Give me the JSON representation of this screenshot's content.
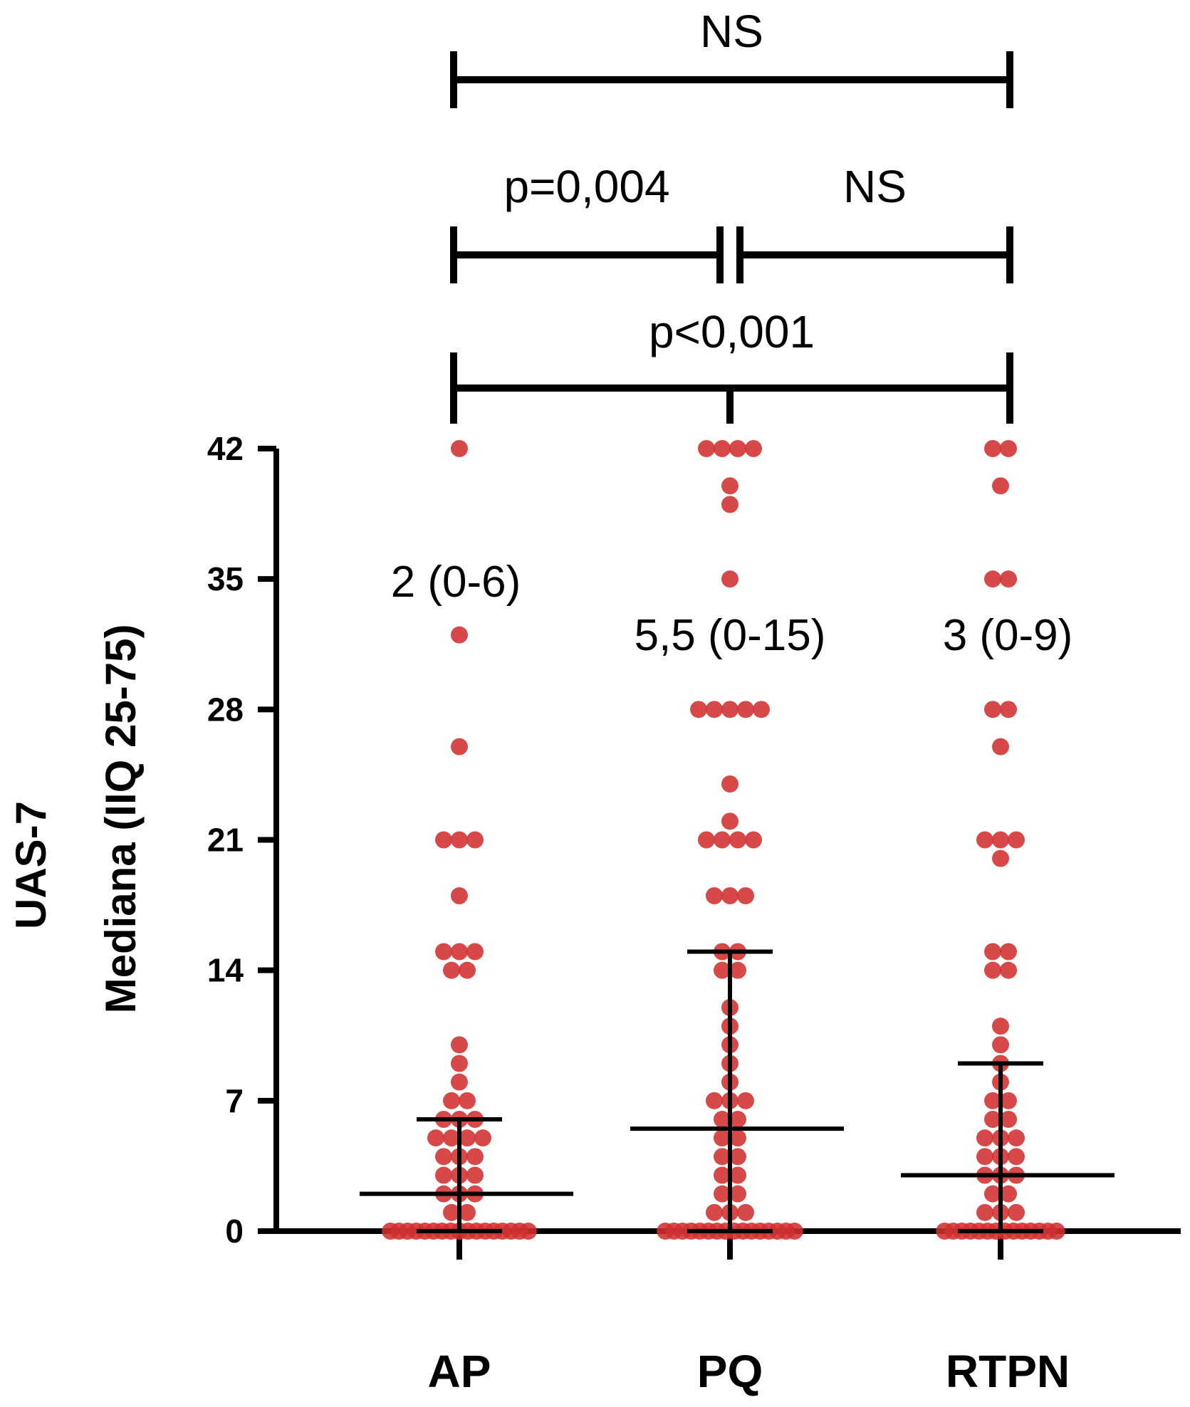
{
  "chart_data": {
    "type": "scatter",
    "ylabel": [
      "UAS-7",
      "Mediana (IIQ 25-75)"
    ],
    "yticks": [
      0,
      7,
      14,
      21,
      28,
      35,
      42
    ],
    "ylim": [
      0,
      42
    ],
    "categories": [
      "AP",
      "PQ",
      "RTPN"
    ],
    "groups": [
      {
        "name": "AP",
        "median": 2,
        "q1": 0,
        "q3": 6,
        "annotation": "2 (0-6)",
        "points": [
          42,
          32,
          26,
          21,
          21,
          21,
          18,
          15,
          15,
          15,
          14,
          14,
          10,
          9,
          8,
          7,
          7,
          6,
          6,
          6,
          5,
          5,
          5,
          5,
          4,
          4,
          4,
          3,
          3,
          3,
          2,
          2,
          2,
          1,
          1,
          0,
          0,
          0,
          0,
          0,
          0,
          0,
          0,
          0,
          0,
          0,
          0,
          0,
          0,
          0,
          0,
          0
        ]
      },
      {
        "name": "PQ",
        "median": 5.5,
        "q1": 0,
        "q3": 15,
        "annotation": "5,5 (0-15)",
        "points": [
          42,
          42,
          42,
          42,
          40,
          39,
          35,
          28,
          28,
          28,
          28,
          28,
          24,
          22,
          21,
          21,
          21,
          21,
          18,
          18,
          18,
          15,
          15,
          14,
          14,
          12,
          11,
          10,
          9,
          8,
          7,
          7,
          7,
          6,
          6,
          5,
          5,
          4,
          4,
          3,
          3,
          2,
          2,
          1,
          1,
          1,
          0,
          0,
          0,
          0,
          0,
          0,
          0,
          0,
          0,
          0,
          0,
          0,
          0,
          0,
          0,
          0
        ]
      },
      {
        "name": "RTPN",
        "median": 3,
        "q1": 0,
        "q3": 9,
        "annotation": "3 (0-9)",
        "points": [
          42,
          42,
          40,
          35,
          35,
          28,
          28,
          26,
          21,
          21,
          21,
          20,
          15,
          15,
          14,
          14,
          11,
          10,
          9,
          8,
          7,
          7,
          6,
          6,
          5,
          5,
          5,
          4,
          4,
          4,
          3,
          3,
          3,
          2,
          2,
          1,
          1,
          1,
          0,
          0,
          0,
          0,
          0,
          0,
          0,
          0,
          0,
          0,
          0,
          0,
          0,
          0
        ]
      }
    ],
    "comparisons": [
      {
        "from": "AP",
        "to": "RTPN",
        "label": "NS",
        "level": 1
      },
      {
        "from": "AP",
        "to": "PQ",
        "label": "p=0,004",
        "level": 2
      },
      {
        "from": "PQ",
        "to": "RTPN",
        "label": "NS",
        "level": 2
      },
      {
        "from": "AP",
        "to": "RTPN",
        "label": "p<0,001",
        "level": 3
      }
    ],
    "colors": {
      "points": "#d0302f",
      "lines": "#000000"
    }
  }
}
